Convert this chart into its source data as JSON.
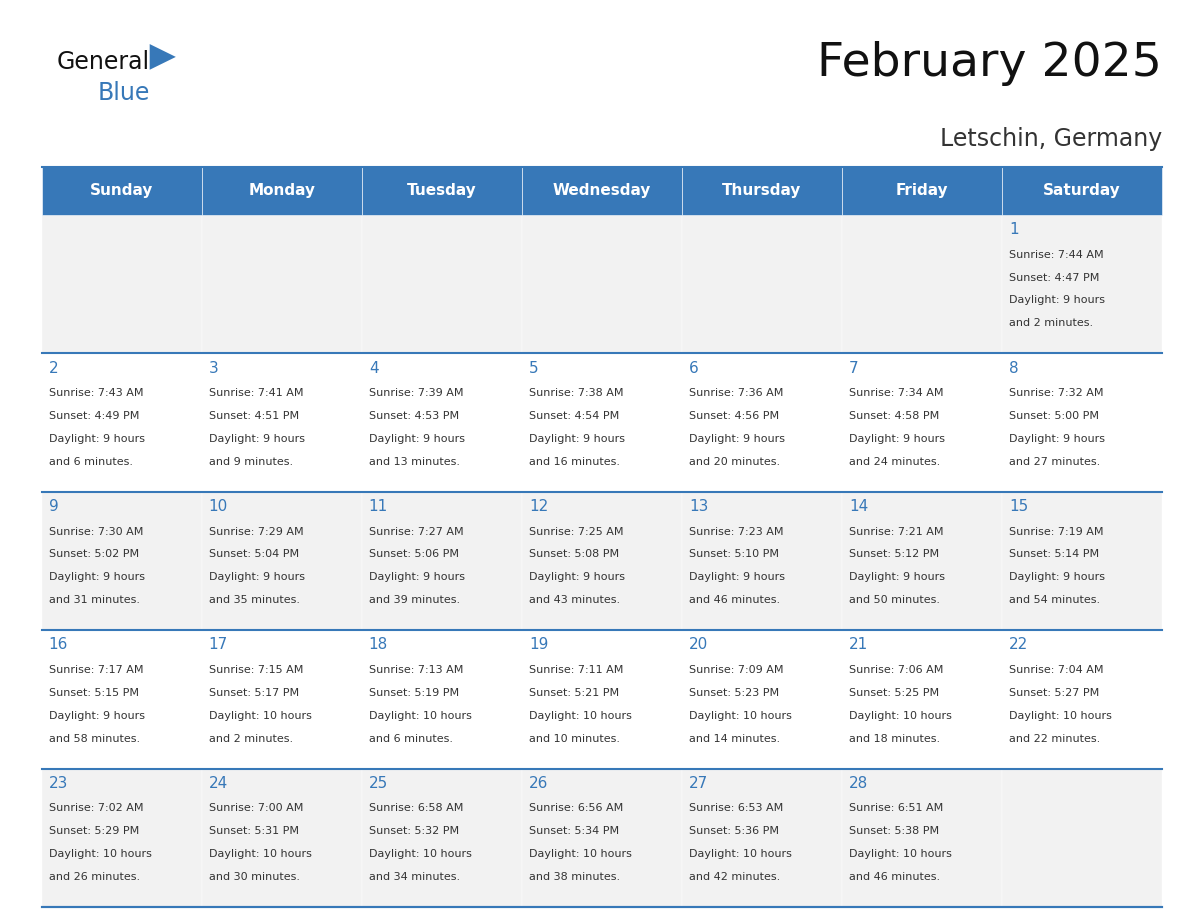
{
  "title": "February 2025",
  "subtitle": "Letschin, Germany",
  "days_of_week": [
    "Sunday",
    "Monday",
    "Tuesday",
    "Wednesday",
    "Thursday",
    "Friday",
    "Saturday"
  ],
  "header_bg": "#3778b8",
  "header_text": "#ffffff",
  "row_bg_even": "#f2f2f2",
  "row_bg_odd": "#ffffff",
  "border_color": "#3778b8",
  "day_number_color": "#3778b8",
  "cell_text_color": "#333333",
  "background_color": "#ffffff",
  "calendar_data": [
    {
      "day": 1,
      "col": 6,
      "row": 0,
      "sunrise": "7:44 AM",
      "sunset": "4:47 PM",
      "daylight": "9 hours and 2 minutes"
    },
    {
      "day": 2,
      "col": 0,
      "row": 1,
      "sunrise": "7:43 AM",
      "sunset": "4:49 PM",
      "daylight": "9 hours and 6 minutes"
    },
    {
      "day": 3,
      "col": 1,
      "row": 1,
      "sunrise": "7:41 AM",
      "sunset": "4:51 PM",
      "daylight": "9 hours and 9 minutes"
    },
    {
      "day": 4,
      "col": 2,
      "row": 1,
      "sunrise": "7:39 AM",
      "sunset": "4:53 PM",
      "daylight": "9 hours and 13 minutes"
    },
    {
      "day": 5,
      "col": 3,
      "row": 1,
      "sunrise": "7:38 AM",
      "sunset": "4:54 PM",
      "daylight": "9 hours and 16 minutes"
    },
    {
      "day": 6,
      "col": 4,
      "row": 1,
      "sunrise": "7:36 AM",
      "sunset": "4:56 PM",
      "daylight": "9 hours and 20 minutes"
    },
    {
      "day": 7,
      "col": 5,
      "row": 1,
      "sunrise": "7:34 AM",
      "sunset": "4:58 PM",
      "daylight": "9 hours and 24 minutes"
    },
    {
      "day": 8,
      "col": 6,
      "row": 1,
      "sunrise": "7:32 AM",
      "sunset": "5:00 PM",
      "daylight": "9 hours and 27 minutes"
    },
    {
      "day": 9,
      "col": 0,
      "row": 2,
      "sunrise": "7:30 AM",
      "sunset": "5:02 PM",
      "daylight": "9 hours and 31 minutes"
    },
    {
      "day": 10,
      "col": 1,
      "row": 2,
      "sunrise": "7:29 AM",
      "sunset": "5:04 PM",
      "daylight": "9 hours and 35 minutes"
    },
    {
      "day": 11,
      "col": 2,
      "row": 2,
      "sunrise": "7:27 AM",
      "sunset": "5:06 PM",
      "daylight": "9 hours and 39 minutes"
    },
    {
      "day": 12,
      "col": 3,
      "row": 2,
      "sunrise": "7:25 AM",
      "sunset": "5:08 PM",
      "daylight": "9 hours and 43 minutes"
    },
    {
      "day": 13,
      "col": 4,
      "row": 2,
      "sunrise": "7:23 AM",
      "sunset": "5:10 PM",
      "daylight": "9 hours and 46 minutes"
    },
    {
      "day": 14,
      "col": 5,
      "row": 2,
      "sunrise": "7:21 AM",
      "sunset": "5:12 PM",
      "daylight": "9 hours and 50 minutes"
    },
    {
      "day": 15,
      "col": 6,
      "row": 2,
      "sunrise": "7:19 AM",
      "sunset": "5:14 PM",
      "daylight": "9 hours and 54 minutes"
    },
    {
      "day": 16,
      "col": 0,
      "row": 3,
      "sunrise": "7:17 AM",
      "sunset": "5:15 PM",
      "daylight": "9 hours and 58 minutes"
    },
    {
      "day": 17,
      "col": 1,
      "row": 3,
      "sunrise": "7:15 AM",
      "sunset": "5:17 PM",
      "daylight": "10 hours and 2 minutes"
    },
    {
      "day": 18,
      "col": 2,
      "row": 3,
      "sunrise": "7:13 AM",
      "sunset": "5:19 PM",
      "daylight": "10 hours and 6 minutes"
    },
    {
      "day": 19,
      "col": 3,
      "row": 3,
      "sunrise": "7:11 AM",
      "sunset": "5:21 PM",
      "daylight": "10 hours and 10 minutes"
    },
    {
      "day": 20,
      "col": 4,
      "row": 3,
      "sunrise": "7:09 AM",
      "sunset": "5:23 PM",
      "daylight": "10 hours and 14 minutes"
    },
    {
      "day": 21,
      "col": 5,
      "row": 3,
      "sunrise": "7:06 AM",
      "sunset": "5:25 PM",
      "daylight": "10 hours and 18 minutes"
    },
    {
      "day": 22,
      "col": 6,
      "row": 3,
      "sunrise": "7:04 AM",
      "sunset": "5:27 PM",
      "daylight": "10 hours and 22 minutes"
    },
    {
      "day": 23,
      "col": 0,
      "row": 4,
      "sunrise": "7:02 AM",
      "sunset": "5:29 PM",
      "daylight": "10 hours and 26 minutes"
    },
    {
      "day": 24,
      "col": 1,
      "row": 4,
      "sunrise": "7:00 AM",
      "sunset": "5:31 PM",
      "daylight": "10 hours and 30 minutes"
    },
    {
      "day": 25,
      "col": 2,
      "row": 4,
      "sunrise": "6:58 AM",
      "sunset": "5:32 PM",
      "daylight": "10 hours and 34 minutes"
    },
    {
      "day": 26,
      "col": 3,
      "row": 4,
      "sunrise": "6:56 AM",
      "sunset": "5:34 PM",
      "daylight": "10 hours and 38 minutes"
    },
    {
      "day": 27,
      "col": 4,
      "row": 4,
      "sunrise": "6:53 AM",
      "sunset": "5:36 PM",
      "daylight": "10 hours and 42 minutes"
    },
    {
      "day": 28,
      "col": 5,
      "row": 4,
      "sunrise": "6:51 AM",
      "sunset": "5:38 PM",
      "daylight": "10 hours and 46 minutes"
    }
  ],
  "num_rows": 5,
  "num_cols": 7,
  "logo_text_general": "General",
  "logo_text_blue": "Blue",
  "logo_triangle_color": "#3778b8",
  "logo_general_color": "#111111"
}
